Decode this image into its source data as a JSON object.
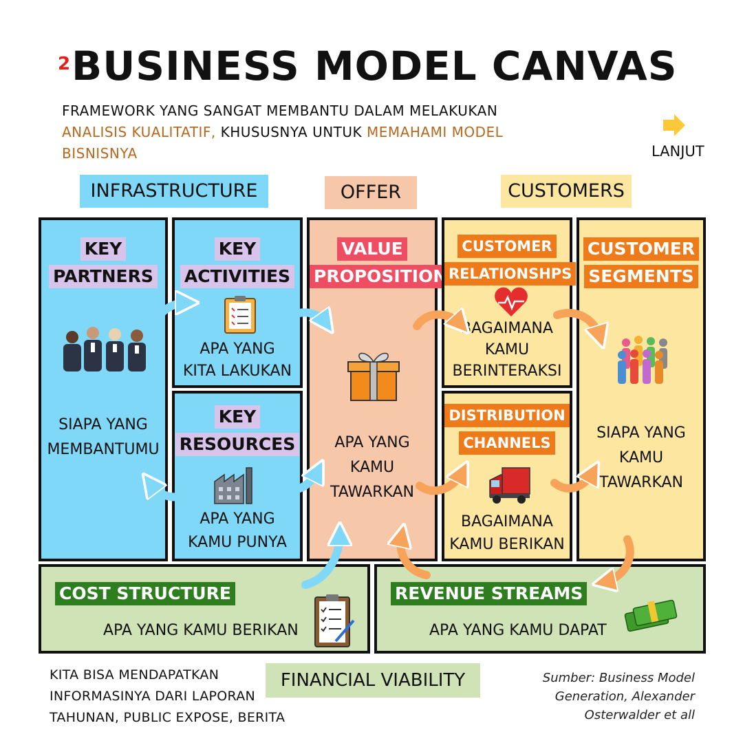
{
  "header": {
    "number": "2",
    "title": "BUSINESS MODEL CANVAS",
    "subtitle_part1": "FRAMEWORK YANG SANGAT MEMBANTU DALAM MELAKUKAN ",
    "subtitle_highlight1": "ANALISIS KUALITATIF,",
    "subtitle_part2": " KHUSUSNYA UNTUK ",
    "subtitle_highlight2": "MEMAHAMI MODEL BISNISNYA",
    "next_label": "LANJUT"
  },
  "groups": {
    "infrastructure": "INFRASTRUCTURE",
    "offer": "OFFER",
    "customers": "CUSTOMERS"
  },
  "blocks": {
    "key_partners": {
      "line1": "KEY",
      "line2": "PARTNERS",
      "desc1": "SIAPA YANG",
      "desc2": "MEMBANTUMU"
    },
    "key_activities": {
      "line1": "KEY",
      "line2": "ACTIVITIES",
      "desc1": "APA YANG",
      "desc2": "KITA LAKUKAN"
    },
    "key_resources": {
      "line1": "KEY",
      "line2": "RESOURCES",
      "desc1": "APA YANG",
      "desc2": "KAMU PUNYA"
    },
    "value_proposition": {
      "line1": "VALUE",
      "line2": "PROPOSITION",
      "desc1": "APA YANG",
      "desc2": "KAMU",
      "desc3": "TAWARKAN"
    },
    "customer_relationships": {
      "line1": "CUSTOMER",
      "line2": "RELATIONSHPS",
      "desc1": "BAGAIMANA",
      "desc2": "KAMU",
      "desc3": "BERINTERAKSI"
    },
    "distribution_channels": {
      "line1": "DISTRIBUTION",
      "line2": "CHANNELS",
      "desc1": "BAGAIMANA",
      "desc2": "KAMU BERIKAN"
    },
    "customer_segments": {
      "line1": "CUSTOMER",
      "line2": "SEGMENTS",
      "desc1": "SIAPA YANG",
      "desc2": "KAMU",
      "desc3": "TAWARKAN"
    },
    "cost_structure": {
      "label": "COST STRUCTURE",
      "desc": "APA YANG KAMU BERIKAN"
    },
    "revenue_streams": {
      "label": "REVENUE STREAMS",
      "desc": "APA YANG KAMU DAPAT"
    }
  },
  "footer": {
    "financial_viability": "FINANCIAL VIABILITY",
    "info1": "KITA BISA MENDAPATKAN",
    "info2": "INFORMASINYA DARI LAPORAN",
    "info3": "TAHUNAN, PUBLIC EXPOSE, BERITA",
    "source1": "Sumber: Business Model",
    "source2": "Generation, Alexander",
    "source3": "Osterwalder et all"
  },
  "colors": {
    "blue_panel": "#7fd8f7",
    "peach_panel": "#f6c7a8",
    "yellow_panel": "#fde6a0",
    "green_panel": "#cfe3b7",
    "purple_label": "#d8c3ea",
    "red_label": "#ee4d62",
    "orange_label": "#ee7a1a",
    "green_label": "#2e7d1f",
    "blue_arrow": "#7fd8f7",
    "orange_arrow": "#f7a35a"
  }
}
